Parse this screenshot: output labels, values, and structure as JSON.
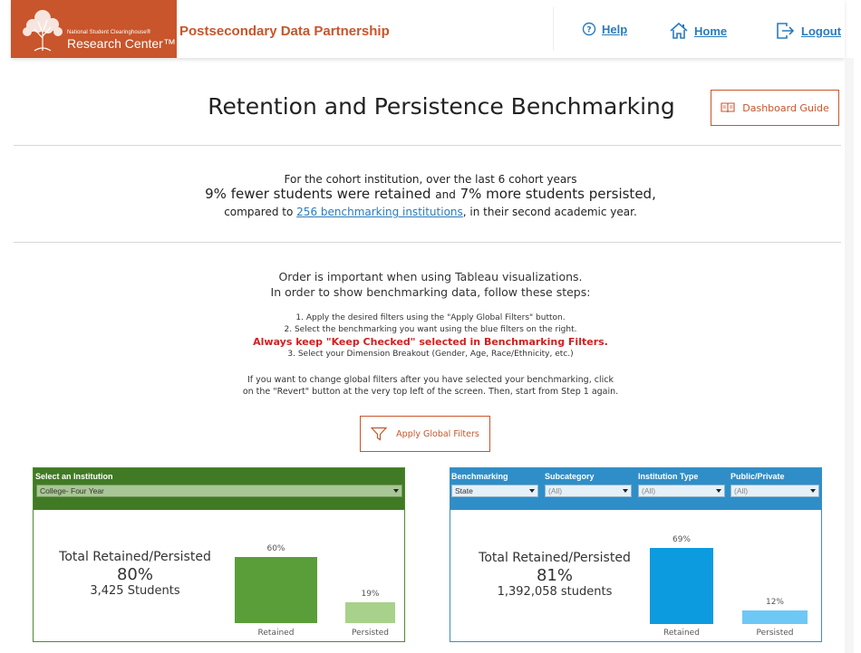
{
  "header": {
    "logo_small": "National Student Clearinghouse®",
    "logo_big": "Research Center™",
    "brand": "Postsecondary Data Partnership",
    "nav": {
      "help": "Help",
      "home": "Home",
      "logout": "Logout"
    },
    "colors": {
      "brand": "#c8552b",
      "link": "#2a7bbd"
    }
  },
  "page": {
    "title": "Retention and Persistence Benchmarking",
    "guide_button": "Dashboard Guide"
  },
  "summary": {
    "line1": "For the cohort institution, over the last 6 cohort years",
    "line2a": "9% fewer students were retained",
    "line2and": "and",
    "line2b": "7% more students persisted,",
    "line3a": "compared to",
    "line3link": "256 benchmarking institutions",
    "line3b": ", in their second academic year."
  },
  "instructions": {
    "line1": "Order is important when using Tableau visualizations.",
    "line2": "In order to show benchmarking data, follow these steps:",
    "step1": "1. Apply the desired filters using the \"Apply Global Filters\" button.",
    "step2": "2. Select the benchmarking you want using the blue filters on the right.",
    "warning": "Always keep \"Keep Checked\" selected in Benchmarking Filters.",
    "step3": "3. Select your Dimension Breakout (Gender, Age, Race/Ethnicity, etc.)",
    "note1": "If you want to change global filters after you have selected your benchmarking, click",
    "note2": "on the \"Revert\" button at the very top left of the screen. Then, start from Step 1 again.",
    "apply_button": "Apply Global Filters"
  },
  "left_panel": {
    "filter_label": "Select an Institution",
    "filter_value": "College- Four Year",
    "total_label": "Total Retained/Persisted",
    "total_percent": "80%",
    "total_students": "3,425 Students",
    "bars": [
      {
        "name": "Retained",
        "label": "60%",
        "value": 60,
        "color": "#5a9e3a"
      },
      {
        "name": "Persisted",
        "label": "19%",
        "value": 19,
        "color": "#a8d18b"
      }
    ]
  },
  "right_panel": {
    "filters": [
      {
        "label": "Benchmarking",
        "value": "State"
      },
      {
        "label": "Subcategory",
        "value": "(All)"
      },
      {
        "label": "Institution Type",
        "value": "(All)"
      },
      {
        "label": "Public/Private",
        "value": "(All)"
      }
    ],
    "total_label": "Total Retained/Persisted",
    "total_percent": "81%",
    "total_students": "1,392,058 students",
    "bars": [
      {
        "name": "Retained",
        "label": "69%",
        "value": 69,
        "color": "#0d9be0"
      },
      {
        "name": "Persisted",
        "label": "12%",
        "value": 12,
        "color": "#6dc8f6"
      }
    ]
  },
  "chart_data": [
    {
      "type": "bar",
      "categories": [
        "Retained",
        "Persisted"
      ],
      "values": [
        60,
        19
      ],
      "title": "",
      "xlabel": "",
      "ylabel": ""
    },
    {
      "type": "bar",
      "categories": [
        "Retained",
        "Persisted"
      ],
      "values": [
        69,
        12
      ],
      "title": "",
      "xlabel": "",
      "ylabel": ""
    }
  ]
}
